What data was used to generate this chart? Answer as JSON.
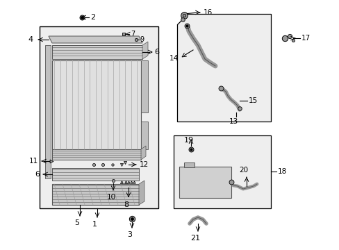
{
  "bg_color": "#ffffff",
  "line_color": "#000000",
  "gray_color": "#555555",
  "light_gray": "#cccccc",
  "part_gray": "#999999",
  "fill_gray": "#e8e8e8",
  "fig_width": 4.89,
  "fig_height": 3.6
}
